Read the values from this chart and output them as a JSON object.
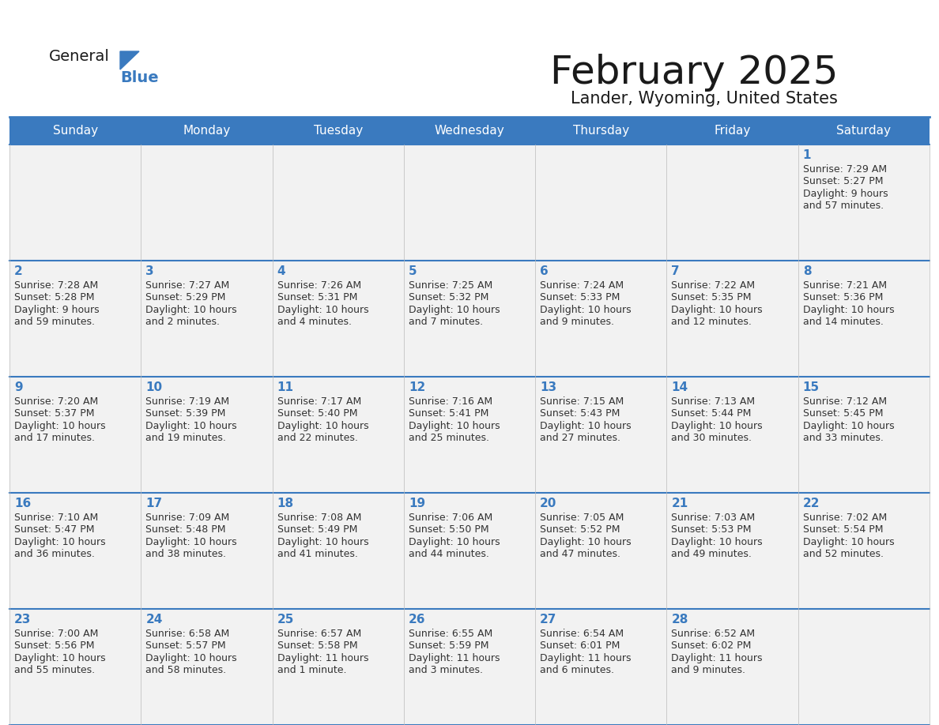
{
  "title": "February 2025",
  "subtitle": "Lander, Wyoming, United States",
  "days_of_week": [
    "Sunday",
    "Monday",
    "Tuesday",
    "Wednesday",
    "Thursday",
    "Friday",
    "Saturday"
  ],
  "header_bg": "#3a7abf",
  "header_text": "#ffffff",
  "cell_bg_light": "#f2f2f2",
  "cell_bg_white": "#ffffff",
  "border_color": "#3a7abf",
  "day_number_color": "#3a7abf",
  "cell_text_color": "#333333",
  "title_color": "#1a1a1a",
  "subtitle_color": "#1a1a1a",
  "logo_general_color": "#1a1a1a",
  "logo_blue_color": "#3a7abf",
  "calendar_data": [
    {
      "day": 1,
      "row": 0,
      "col": 6,
      "sunrise": "7:29 AM",
      "sunset": "5:27 PM",
      "daylight_h": "9 hours",
      "daylight_m": "and 57 minutes."
    },
    {
      "day": 2,
      "row": 1,
      "col": 0,
      "sunrise": "7:28 AM",
      "sunset": "5:28 PM",
      "daylight_h": "9 hours",
      "daylight_m": "and 59 minutes."
    },
    {
      "day": 3,
      "row": 1,
      "col": 1,
      "sunrise": "7:27 AM",
      "sunset": "5:29 PM",
      "daylight_h": "10 hours",
      "daylight_m": "and 2 minutes."
    },
    {
      "day": 4,
      "row": 1,
      "col": 2,
      "sunrise": "7:26 AM",
      "sunset": "5:31 PM",
      "daylight_h": "10 hours",
      "daylight_m": "and 4 minutes."
    },
    {
      "day": 5,
      "row": 1,
      "col": 3,
      "sunrise": "7:25 AM",
      "sunset": "5:32 PM",
      "daylight_h": "10 hours",
      "daylight_m": "and 7 minutes."
    },
    {
      "day": 6,
      "row": 1,
      "col": 4,
      "sunrise": "7:24 AM",
      "sunset": "5:33 PM",
      "daylight_h": "10 hours",
      "daylight_m": "and 9 minutes."
    },
    {
      "day": 7,
      "row": 1,
      "col": 5,
      "sunrise": "7:22 AM",
      "sunset": "5:35 PM",
      "daylight_h": "10 hours",
      "daylight_m": "and 12 minutes."
    },
    {
      "day": 8,
      "row": 1,
      "col": 6,
      "sunrise": "7:21 AM",
      "sunset": "5:36 PM",
      "daylight_h": "10 hours",
      "daylight_m": "and 14 minutes."
    },
    {
      "day": 9,
      "row": 2,
      "col": 0,
      "sunrise": "7:20 AM",
      "sunset": "5:37 PM",
      "daylight_h": "10 hours",
      "daylight_m": "and 17 minutes."
    },
    {
      "day": 10,
      "row": 2,
      "col": 1,
      "sunrise": "7:19 AM",
      "sunset": "5:39 PM",
      "daylight_h": "10 hours",
      "daylight_m": "and 19 minutes."
    },
    {
      "day": 11,
      "row": 2,
      "col": 2,
      "sunrise": "7:17 AM",
      "sunset": "5:40 PM",
      "daylight_h": "10 hours",
      "daylight_m": "and 22 minutes."
    },
    {
      "day": 12,
      "row": 2,
      "col": 3,
      "sunrise": "7:16 AM",
      "sunset": "5:41 PM",
      "daylight_h": "10 hours",
      "daylight_m": "and 25 minutes."
    },
    {
      "day": 13,
      "row": 2,
      "col": 4,
      "sunrise": "7:15 AM",
      "sunset": "5:43 PM",
      "daylight_h": "10 hours",
      "daylight_m": "and 27 minutes."
    },
    {
      "day": 14,
      "row": 2,
      "col": 5,
      "sunrise": "7:13 AM",
      "sunset": "5:44 PM",
      "daylight_h": "10 hours",
      "daylight_m": "and 30 minutes."
    },
    {
      "day": 15,
      "row": 2,
      "col": 6,
      "sunrise": "7:12 AM",
      "sunset": "5:45 PM",
      "daylight_h": "10 hours",
      "daylight_m": "and 33 minutes."
    },
    {
      "day": 16,
      "row": 3,
      "col": 0,
      "sunrise": "7:10 AM",
      "sunset": "5:47 PM",
      "daylight_h": "10 hours",
      "daylight_m": "and 36 minutes."
    },
    {
      "day": 17,
      "row": 3,
      "col": 1,
      "sunrise": "7:09 AM",
      "sunset": "5:48 PM",
      "daylight_h": "10 hours",
      "daylight_m": "and 38 minutes."
    },
    {
      "day": 18,
      "row": 3,
      "col": 2,
      "sunrise": "7:08 AM",
      "sunset": "5:49 PM",
      "daylight_h": "10 hours",
      "daylight_m": "and 41 minutes."
    },
    {
      "day": 19,
      "row": 3,
      "col": 3,
      "sunrise": "7:06 AM",
      "sunset": "5:50 PM",
      "daylight_h": "10 hours",
      "daylight_m": "and 44 minutes."
    },
    {
      "day": 20,
      "row": 3,
      "col": 4,
      "sunrise": "7:05 AM",
      "sunset": "5:52 PM",
      "daylight_h": "10 hours",
      "daylight_m": "and 47 minutes."
    },
    {
      "day": 21,
      "row": 3,
      "col": 5,
      "sunrise": "7:03 AM",
      "sunset": "5:53 PM",
      "daylight_h": "10 hours",
      "daylight_m": "and 49 minutes."
    },
    {
      "day": 22,
      "row": 3,
      "col": 6,
      "sunrise": "7:02 AM",
      "sunset": "5:54 PM",
      "daylight_h": "10 hours",
      "daylight_m": "and 52 minutes."
    },
    {
      "day": 23,
      "row": 4,
      "col": 0,
      "sunrise": "7:00 AM",
      "sunset": "5:56 PM",
      "daylight_h": "10 hours",
      "daylight_m": "and 55 minutes."
    },
    {
      "day": 24,
      "row": 4,
      "col": 1,
      "sunrise": "6:58 AM",
      "sunset": "5:57 PM",
      "daylight_h": "10 hours",
      "daylight_m": "and 58 minutes."
    },
    {
      "day": 25,
      "row": 4,
      "col": 2,
      "sunrise": "6:57 AM",
      "sunset": "5:58 PM",
      "daylight_h": "11 hours",
      "daylight_m": "and 1 minute."
    },
    {
      "day": 26,
      "row": 4,
      "col": 3,
      "sunrise": "6:55 AM",
      "sunset": "5:59 PM",
      "daylight_h": "11 hours",
      "daylight_m": "and 3 minutes."
    },
    {
      "day": 27,
      "row": 4,
      "col": 4,
      "sunrise": "6:54 AM",
      "sunset": "6:01 PM",
      "daylight_h": "11 hours",
      "daylight_m": "and 6 minutes."
    },
    {
      "day": 28,
      "row": 4,
      "col": 5,
      "sunrise": "6:52 AM",
      "sunset": "6:02 PM",
      "daylight_h": "11 hours",
      "daylight_m": "and 9 minutes."
    }
  ],
  "num_rows": 5,
  "num_cols": 7
}
